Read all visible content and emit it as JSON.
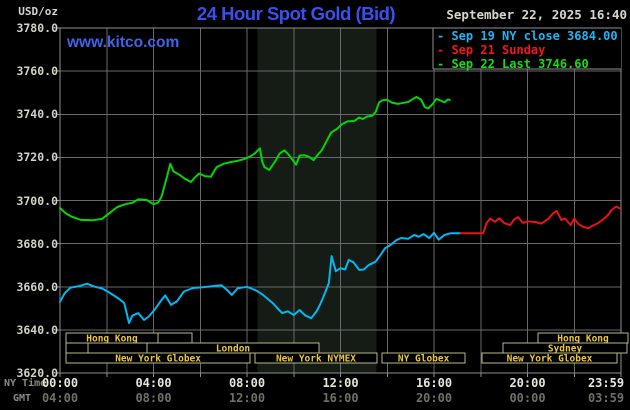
{
  "header": {
    "units_label": "USD/oz",
    "title": "24 Hour Spot Gold (Bid)",
    "datetime": "September 22, 2025 16:40",
    "watermark": "www.kitco.com"
  },
  "legend": [
    {
      "text": "- Sep 19 NY close 3684.00",
      "color": "#1db4f2"
    },
    {
      "text": "- Sep 21 Sunday",
      "color": "#f01818"
    },
    {
      "text": "- Sep 22 Last 3746.60",
      "color": "#15dd15"
    }
  ],
  "axes": {
    "ny_time_label": "NY Time",
    "gmt_label": "GMT",
    "y_ticks": [
      {
        "label": "3780.0",
        "value": 3780
      },
      {
        "label": "3760.0",
        "value": 3760
      },
      {
        "label": "3740.0",
        "value": 3740
      },
      {
        "label": "3720.0",
        "value": 3720
      },
      {
        "label": "3700.0",
        "value": 3700
      },
      {
        "label": "3680.0",
        "value": 3680
      },
      {
        "label": "3660.0",
        "value": 3660
      },
      {
        "label": "3640.0",
        "value": 3640
      },
      {
        "label": "3620.0",
        "value": 3620
      }
    ],
    "x_ticks": [
      {
        "hour": 0,
        "ny": "00:00",
        "gmt": "04:00"
      },
      {
        "hour": 4,
        "ny": "04:00",
        "gmt": "08:00"
      },
      {
        "hour": 8,
        "ny": "08:00",
        "gmt": "12:00"
      },
      {
        "hour": 12,
        "ny": "12:00",
        "gmt": "16:00"
      },
      {
        "hour": 16,
        "ny": "16:00",
        "gmt": "20:00"
      },
      {
        "hour": 20,
        "ny": "20:00",
        "gmt": "00:00"
      },
      {
        "hour": 23.983,
        "ny": "23:59",
        "gmt": "03:59"
      }
    ]
  },
  "sessions": {
    "rows": [
      {
        "boxes": [
          {
            "start_h": 0.26,
            "end_h": 4.19,
            "label": "Hong Kong"
          },
          {
            "start_h": 4.19,
            "end_h": 5.65,
            "label": ""
          },
          {
            "start_h": 20.45,
            "end_h": 24.3,
            "label": "Hong Kong"
          }
        ]
      },
      {
        "boxes": [
          {
            "start_h": 0.26,
            "end_h": 1.2,
            "label": ""
          },
          {
            "start_h": 1.2,
            "end_h": 3.72,
            "label": ""
          },
          {
            "start_h": 3.72,
            "end_h": 11.08,
            "label": "London"
          },
          {
            "start_h": 18.95,
            "end_h": 24.26,
            "label": "Sydney"
          }
        ]
      },
      {
        "boxes": [
          {
            "start_h": 0.26,
            "end_h": 8.13,
            "label": "New York Globex"
          },
          {
            "start_h": 8.34,
            "end_h": 13.56,
            "label": "New York NYMEX"
          },
          {
            "start_h": 13.78,
            "end_h": 17.33,
            "label": "NY Globex"
          },
          {
            "start_h": 18.05,
            "end_h": 23.83,
            "label": "New York Globex"
          }
        ]
      }
    ],
    "box_color": "#b8b884",
    "label_color": "#eac63e"
  },
  "colors": {
    "background": "#000000",
    "grid": "#696969",
    "border": "#8f8f8f",
    "shaded_band": "#151c15"
  },
  "chart_data": {
    "type": "line",
    "title": "24 Hour Spot Gold (Bid)",
    "ylabel": "USD/oz",
    "xlabel": "NY Time (hours 00:00-23:59)",
    "xlim": [
      0,
      24
    ],
    "ylim": [
      3620,
      3780
    ],
    "y_grid_step": 20,
    "x_grid_step_hours": 2,
    "grid": true,
    "legend_position": "top-right",
    "shaded_region_hours": [
      8.45,
      13.55
    ],
    "series": [
      {
        "name": "Sep 19 NY close 3684.00",
        "color": "#00b8f2",
        "close": 3684.0,
        "points": [
          [
            0,
            3653
          ],
          [
            0.2,
            3657
          ],
          [
            0.45,
            3659.6
          ],
          [
            0.8,
            3660.2
          ],
          [
            1.15,
            3661.4
          ],
          [
            1.5,
            3660
          ],
          [
            1.8,
            3659.2
          ],
          [
            2.1,
            3657.4
          ],
          [
            2.5,
            3654.6
          ],
          [
            2.75,
            3652.4
          ],
          [
            2.95,
            3643.2
          ],
          [
            3.1,
            3646.6
          ],
          [
            3.35,
            3647.8
          ],
          [
            3.6,
            3644.6
          ],
          [
            3.8,
            3646.2
          ],
          [
            4.05,
            3649.4
          ],
          [
            4.3,
            3653.2
          ],
          [
            4.5,
            3656
          ],
          [
            4.75,
            3651.6
          ],
          [
            5.0,
            3653.2
          ],
          [
            5.3,
            3657.8
          ],
          [
            5.7,
            3659.4
          ],
          [
            6.1,
            3659.8
          ],
          [
            6.5,
            3660.2
          ],
          [
            6.9,
            3660.7
          ],
          [
            7.15,
            3658.5
          ],
          [
            7.35,
            3656.2
          ],
          [
            7.6,
            3659.3
          ],
          [
            8.0,
            3660
          ],
          [
            8.4,
            3658.2
          ],
          [
            8.7,
            3656.1
          ],
          [
            9.1,
            3652.4
          ],
          [
            9.5,
            3647.8
          ],
          [
            9.75,
            3648.6
          ],
          [
            10.0,
            3646.9
          ],
          [
            10.25,
            3649.2
          ],
          [
            10.5,
            3646.6
          ],
          [
            10.75,
            3645.4
          ],
          [
            11.0,
            3649
          ],
          [
            11.15,
            3652.3
          ],
          [
            11.35,
            3657.5
          ],
          [
            11.5,
            3661.6
          ],
          [
            11.62,
            3674.2
          ],
          [
            11.8,
            3667.2
          ],
          [
            12.0,
            3668.6
          ],
          [
            12.2,
            3668
          ],
          [
            12.35,
            3672.4
          ],
          [
            12.55,
            3671.4
          ],
          [
            12.8,
            3667.8
          ],
          [
            13.0,
            3668
          ],
          [
            13.2,
            3670
          ],
          [
            13.5,
            3671.6
          ],
          [
            13.7,
            3674.5
          ],
          [
            13.9,
            3677.8
          ],
          [
            14.15,
            3679.4
          ],
          [
            14.4,
            3681.7
          ],
          [
            14.6,
            3682.6
          ],
          [
            14.9,
            3682.3
          ],
          [
            15.15,
            3684
          ],
          [
            15.35,
            3683.2
          ],
          [
            15.55,
            3684.4
          ],
          [
            15.8,
            3682.6
          ],
          [
            16.0,
            3685
          ],
          [
            16.2,
            3681.8
          ],
          [
            16.45,
            3684
          ],
          [
            16.7,
            3684.8
          ],
          [
            17.15,
            3684.8
          ]
        ]
      },
      {
        "name": "Sep 21 Sunday",
        "color": "#ea1212",
        "points": [
          [
            17.15,
            3684.8
          ],
          [
            18.1,
            3684.8
          ],
          [
            18.25,
            3689.5
          ],
          [
            18.4,
            3691.6
          ],
          [
            18.6,
            3690.1
          ],
          [
            18.8,
            3691.8
          ],
          [
            19.0,
            3689.6
          ],
          [
            19.25,
            3688.6
          ],
          [
            19.45,
            3691.4
          ],
          [
            19.6,
            3692.3
          ],
          [
            19.8,
            3689.6
          ],
          [
            20.05,
            3690.3
          ],
          [
            20.35,
            3690
          ],
          [
            20.6,
            3689.3
          ],
          [
            20.9,
            3691.6
          ],
          [
            21.1,
            3694.1
          ],
          [
            21.25,
            3695.2
          ],
          [
            21.45,
            3690.9
          ],
          [
            21.6,
            3691.7
          ],
          [
            21.85,
            3688.6
          ],
          [
            22.0,
            3691.6
          ],
          [
            22.15,
            3689.4
          ],
          [
            22.35,
            3687.9
          ],
          [
            22.6,
            3687.1
          ],
          [
            22.8,
            3688.4
          ],
          [
            23.0,
            3689.4
          ],
          [
            23.2,
            3690.9
          ],
          [
            23.45,
            3693.3
          ],
          [
            23.6,
            3695.6
          ],
          [
            23.8,
            3697.2
          ],
          [
            23.95,
            3696.3
          ]
        ]
      },
      {
        "name": "Sep 22 Last 3746.60",
        "color": "#02d602",
        "last": 3746.6,
        "points": [
          [
            0,
            3696.5
          ],
          [
            0.25,
            3694
          ],
          [
            0.5,
            3692.5
          ],
          [
            0.9,
            3691
          ],
          [
            1.4,
            3690.8
          ],
          [
            1.8,
            3691.5
          ],
          [
            2.1,
            3694
          ],
          [
            2.45,
            3697
          ],
          [
            2.8,
            3698.3
          ],
          [
            3.1,
            3699
          ],
          [
            3.35,
            3700.5
          ],
          [
            3.7,
            3700.3
          ],
          [
            4.0,
            3698.3
          ],
          [
            4.2,
            3699
          ],
          [
            4.35,
            3702
          ],
          [
            4.55,
            3710
          ],
          [
            4.72,
            3717
          ],
          [
            4.85,
            3713.5
          ],
          [
            5.1,
            3712
          ],
          [
            5.35,
            3710
          ],
          [
            5.6,
            3708.6
          ],
          [
            5.8,
            3711
          ],
          [
            5.95,
            3712.5
          ],
          [
            6.2,
            3711.3
          ],
          [
            6.45,
            3711
          ],
          [
            6.7,
            3715.5
          ],
          [
            7.0,
            3717
          ],
          [
            7.3,
            3717.8
          ],
          [
            7.6,
            3718.4
          ],
          [
            7.9,
            3719.3
          ],
          [
            8.15,
            3720.5
          ],
          [
            8.35,
            3722
          ],
          [
            8.55,
            3724.2
          ],
          [
            8.65,
            3718
          ],
          [
            8.75,
            3715.5
          ],
          [
            8.95,
            3714.2
          ],
          [
            9.2,
            3718
          ],
          [
            9.4,
            3721.8
          ],
          [
            9.6,
            3723.3
          ],
          [
            9.8,
            3721
          ],
          [
            9.95,
            3718.8
          ],
          [
            10.1,
            3716.6
          ],
          [
            10.25,
            3720.8
          ],
          [
            10.45,
            3721
          ],
          [
            10.65,
            3720.3
          ],
          [
            10.85,
            3718.7
          ],
          [
            11.05,
            3721.5
          ],
          [
            11.2,
            3723.3
          ],
          [
            11.4,
            3727.5
          ],
          [
            11.6,
            3731.5
          ],
          [
            11.85,
            3733.2
          ],
          [
            12.05,
            3735.3
          ],
          [
            12.3,
            3736.7
          ],
          [
            12.6,
            3736.9
          ],
          [
            12.8,
            3738.5
          ],
          [
            12.95,
            3737.8
          ],
          [
            13.15,
            3739
          ],
          [
            13.35,
            3739.3
          ],
          [
            13.5,
            3741
          ],
          [
            13.65,
            3745.5
          ],
          [
            13.8,
            3746.5
          ],
          [
            14.0,
            3746.7
          ],
          [
            14.2,
            3745.4
          ],
          [
            14.45,
            3744.8
          ],
          [
            14.7,
            3745.3
          ],
          [
            14.9,
            3745.7
          ],
          [
            15.1,
            3747.1
          ],
          [
            15.25,
            3748
          ],
          [
            15.45,
            3746.8
          ],
          [
            15.6,
            3743.3
          ],
          [
            15.75,
            3742.7
          ],
          [
            15.95,
            3744.8
          ],
          [
            16.1,
            3747.1
          ],
          [
            16.3,
            3746.3
          ],
          [
            16.45,
            3745.5
          ],
          [
            16.6,
            3746.9
          ],
          [
            16.67,
            3746.6
          ]
        ]
      }
    ]
  }
}
